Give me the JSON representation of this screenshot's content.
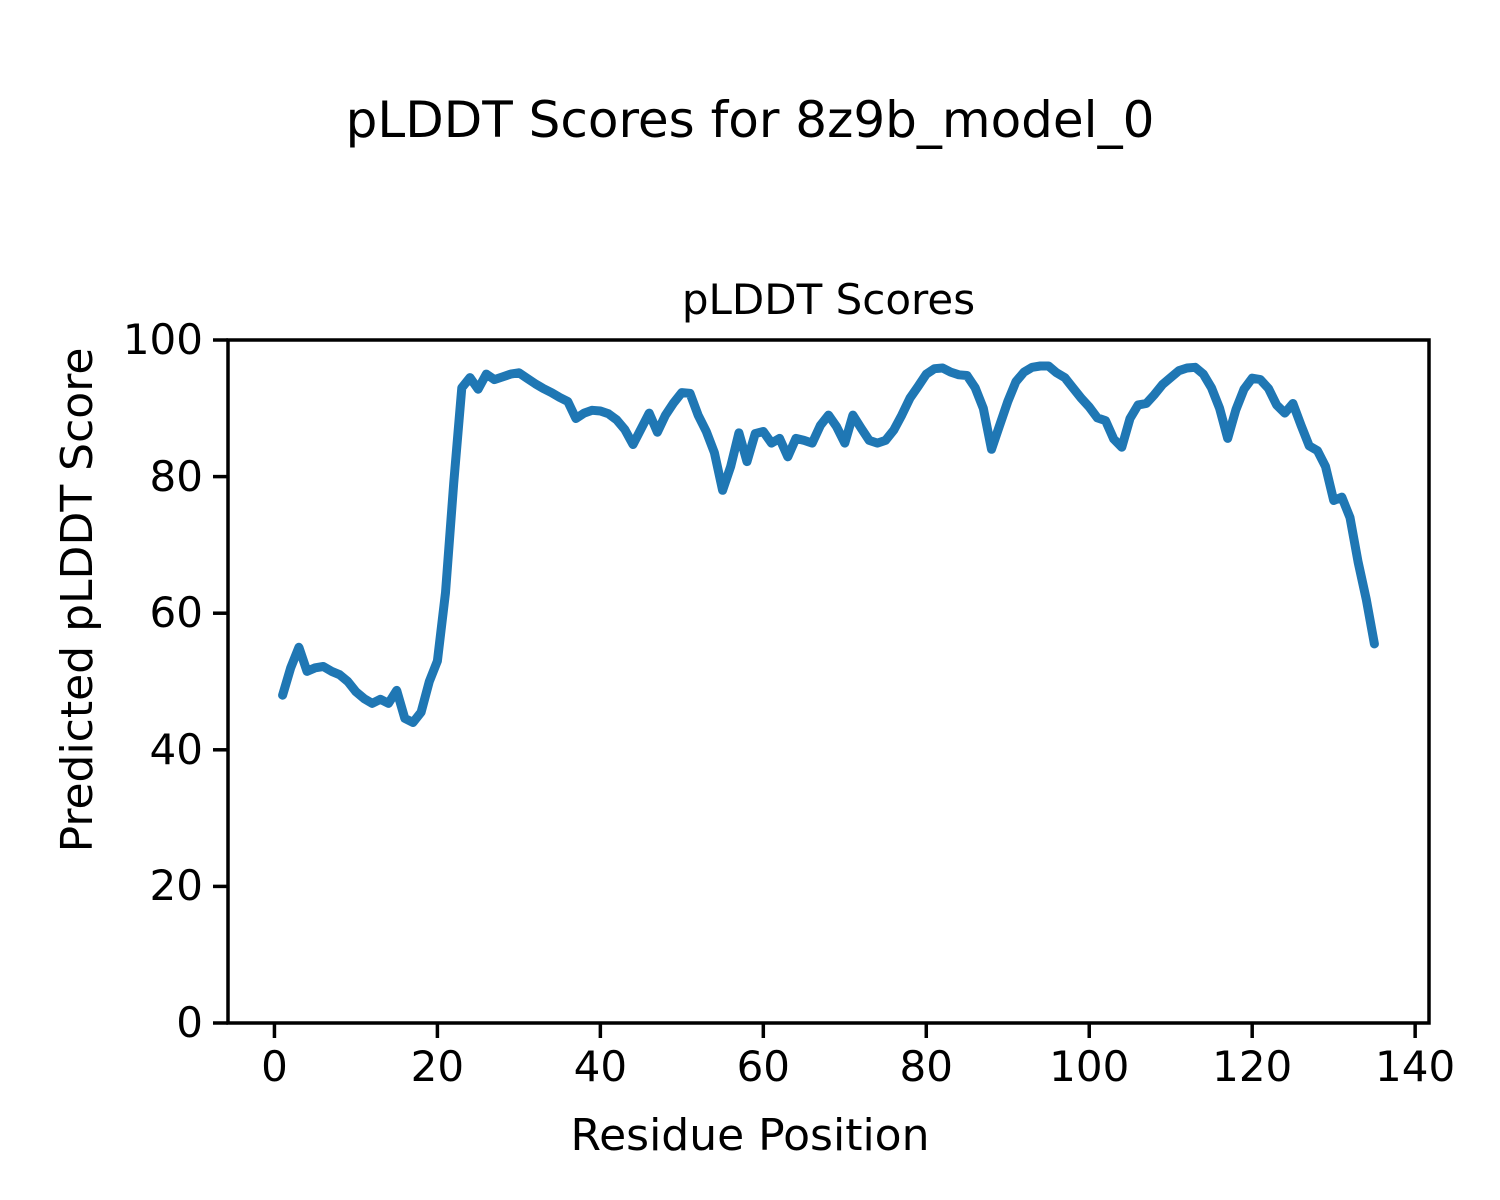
{
  "figure": {
    "suptitle": "pLDDT Scores for 8z9b_model_0"
  },
  "chart_data": {
    "type": "line",
    "title": "pLDDT Scores",
    "suptitle": "pLDDT Scores for 8z9b_model_0",
    "xlabel": "Residue Position",
    "ylabel": "Predicted pLDDT Score",
    "xlim": [
      -5.7,
      141.7
    ],
    "ylim": [
      0,
      100
    ],
    "xticks": [
      0,
      20,
      40,
      60,
      80,
      100,
      120,
      140
    ],
    "yticks": [
      0,
      20,
      40,
      60,
      80,
      100
    ],
    "grid": false,
    "legend_position": "none",
    "line_color": "#1f77b4",
    "axis_color": "#000000",
    "series": [
      {
        "name": "pLDDT",
        "x": [
          1,
          2,
          3,
          4,
          5,
          6,
          7,
          8,
          9,
          10,
          11,
          12,
          13,
          14,
          15,
          16,
          17,
          18,
          19,
          20,
          21,
          22,
          23,
          24,
          25,
          26,
          27,
          28,
          29,
          30,
          31,
          32,
          33,
          34,
          35,
          36,
          37,
          38,
          39,
          40,
          41,
          42,
          43,
          44,
          45,
          46,
          47,
          48,
          49,
          50,
          51,
          52,
          53,
          54,
          55,
          56,
          57,
          58,
          59,
          60,
          61,
          62,
          63,
          64,
          65,
          66,
          67,
          68,
          69,
          70,
          71,
          72,
          73,
          74,
          75,
          76,
          77,
          78,
          79,
          80,
          81,
          82,
          83,
          84,
          85,
          86,
          87,
          88,
          89,
          90,
          91,
          92,
          93,
          94,
          95,
          96,
          97,
          98,
          99,
          100,
          101,
          102,
          103,
          104,
          105,
          106,
          107,
          108,
          109,
          110,
          111,
          112,
          113,
          114,
          115,
          116,
          117,
          118,
          119,
          120,
          121,
          122,
          123,
          124,
          125,
          126,
          127,
          128,
          129,
          130,
          131,
          132,
          133,
          134,
          135
        ],
        "values": [
          48.0,
          52.0,
          55.0,
          51.5,
          52.0,
          52.2,
          51.5,
          51.0,
          50.0,
          48.5,
          47.5,
          46.8,
          47.4,
          46.8,
          48.7,
          44.6,
          44.0,
          45.5,
          50.0,
          53.0,
          63.0,
          79.0,
          93.0,
          94.5,
          92.8,
          95.0,
          94.2,
          94.6,
          95.0,
          95.2,
          94.4,
          93.6,
          92.9,
          92.3,
          91.6,
          91.0,
          88.5,
          89.3,
          89.7,
          89.6,
          89.2,
          88.3,
          86.9,
          84.7,
          87.0,
          89.3,
          86.5,
          89.0,
          90.8,
          92.3,
          92.2,
          89.0,
          86.6,
          83.5,
          78.0,
          81.5,
          86.4,
          82.2,
          86.3,
          86.6,
          84.9,
          85.6,
          82.9,
          85.6,
          85.3,
          84.9,
          87.5,
          89.0,
          87.3,
          84.9,
          89.0,
          87.1,
          85.3,
          84.9,
          85.3,
          86.8,
          89.0,
          91.5,
          93.2,
          95.0,
          95.8,
          95.9,
          95.3,
          94.9,
          94.8,
          93.0,
          90.0,
          84.0,
          87.5,
          91.0,
          93.9,
          95.3,
          96.0,
          96.2,
          96.2,
          95.2,
          94.5,
          93.0,
          91.5,
          90.2,
          88.6,
          88.2,
          85.5,
          84.3,
          88.5,
          90.5,
          90.7,
          92.0,
          93.5,
          94.5,
          95.5,
          95.9,
          96.0,
          95.0,
          93.0,
          90.0,
          85.6,
          89.8,
          92.8,
          94.4,
          94.2,
          92.9,
          90.5,
          89.3,
          90.7,
          87.5,
          84.5,
          83.8,
          81.5,
          76.5,
          77.0,
          74.0,
          67.5,
          62.0,
          55.5
        ]
      }
    ]
  }
}
